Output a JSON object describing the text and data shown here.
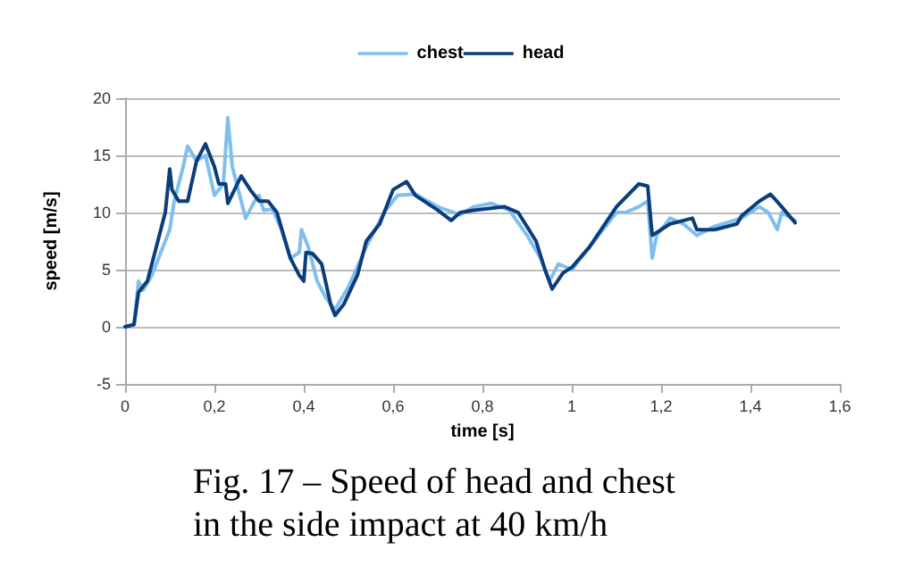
{
  "chart_data": {
    "type": "line",
    "xlabel": "time [s]",
    "ylabel": "speed [m/s]",
    "annotations": [
      "Fig. 17 – Speed of head and chest in the side impact at 40 km/h"
    ],
    "legend": "top",
    "grid": "y",
    "marker": "none",
    "line_style": "solid",
    "xlim": [
      0,
      1.6
    ],
    "xticks": [
      0,
      {
        "value": 0.2,
        "label": "0,2"
      },
      {
        "value": 0.4,
        "label": "0,4"
      },
      {
        "value": 0.6,
        "label": "0,6"
      },
      {
        "value": 0.8,
        "label": "0,8"
      },
      1,
      {
        "value": 1.2,
        "label": "1,2"
      },
      {
        "value": 1.4,
        "label": "1,4"
      },
      {
        "value": 1.6,
        "label": "1,6"
      }
    ],
    "ylim": [
      -5,
      20
    ],
    "yticks": [
      -5,
      0,
      5,
      10,
      15,
      20
    ],
    "series": [
      {
        "name": "chest",
        "color": "#7fbfef",
        "x": [
          0,
          0.02,
          0.03,
          0.04,
          0.06,
          0.08,
          0.1,
          0.11,
          0.13,
          0.14,
          0.16,
          0.18,
          0.2,
          0.22,
          0.23,
          0.24,
          0.26,
          0.27,
          0.29,
          0.3,
          0.31,
          0.33,
          0.35,
          0.37,
          0.39,
          0.395,
          0.41,
          0.43,
          0.45,
          0.47,
          0.5,
          0.54,
          0.58,
          0.61,
          0.65,
          0.7,
          0.75,
          0.78,
          0.82,
          0.86,
          0.9,
          0.93,
          0.95,
          0.97,
          1,
          1.05,
          1.1,
          1.12,
          1.15,
          1.17,
          1.18,
          1.19,
          1.22,
          1.25,
          1.28,
          1.32,
          1.38,
          1.42,
          1.44,
          1.46,
          1.47,
          1.5
        ],
        "values": [
          0,
          0.2,
          4,
          3.2,
          4.5,
          6.5,
          8.5,
          11,
          14,
          15.8,
          14.5,
          15,
          11.5,
          12.5,
          18.3,
          14,
          11,
          9.5,
          11,
          11.5,
          10.2,
          10.3,
          8.5,
          6,
          6.5,
          8.5,
          7,
          4,
          2.5,
          1.5,
          3.5,
          7,
          10,
          11.5,
          11.6,
          10.5,
          9.8,
          10.5,
          10.8,
          10.2,
          8,
          6,
          4,
          5.5,
          5,
          7.5,
          10,
          10,
          10.5,
          11,
          6,
          8,
          9.5,
          9,
          8,
          8.8,
          9.5,
          10.5,
          10,
          8.5,
          10,
          9.3
        ]
      },
      {
        "name": "head",
        "color": "#0b3d7a",
        "x": [
          0,
          0.02,
          0.03,
          0.05,
          0.07,
          0.09,
          0.1,
          0.105,
          0.12,
          0.14,
          0.16,
          0.18,
          0.2,
          0.21,
          0.225,
          0.23,
          0.26,
          0.28,
          0.3,
          0.32,
          0.34,
          0.37,
          0.39,
          0.4,
          0.405,
          0.42,
          0.44,
          0.46,
          0.47,
          0.49,
          0.52,
          0.54,
          0.57,
          0.6,
          0.63,
          0.65,
          0.7,
          0.73,
          0.75,
          0.78,
          0.85,
          0.88,
          0.92,
          0.94,
          0.956,
          0.98,
          1,
          1.04,
          1.1,
          1.15,
          1.17,
          1.18,
          1.2,
          1.22,
          1.27,
          1.28,
          1.32,
          1.37,
          1.38,
          1.42,
          1.445,
          1.47,
          1.5
        ],
        "values": [
          0,
          0.2,
          3,
          4,
          7,
          10,
          13.8,
          12,
          11,
          11,
          14.5,
          16,
          14,
          12.5,
          12.5,
          10.8,
          13.2,
          12,
          11,
          11,
          10,
          6,
          4.5,
          4,
          6.5,
          6.4,
          5.5,
          2,
          1,
          2,
          4.5,
          7.5,
          9,
          12,
          12.7,
          11.5,
          10.2,
          9.3,
          10,
          10.2,
          10.5,
          10,
          7.5,
          5,
          3.3,
          4.7,
          5.2,
          7,
          10.5,
          12.5,
          12.3,
          8,
          8.5,
          9,
          9.5,
          8.5,
          8.5,
          9,
          9.7,
          11,
          11.6,
          10.5,
          9.1
        ]
      }
    ]
  }
}
